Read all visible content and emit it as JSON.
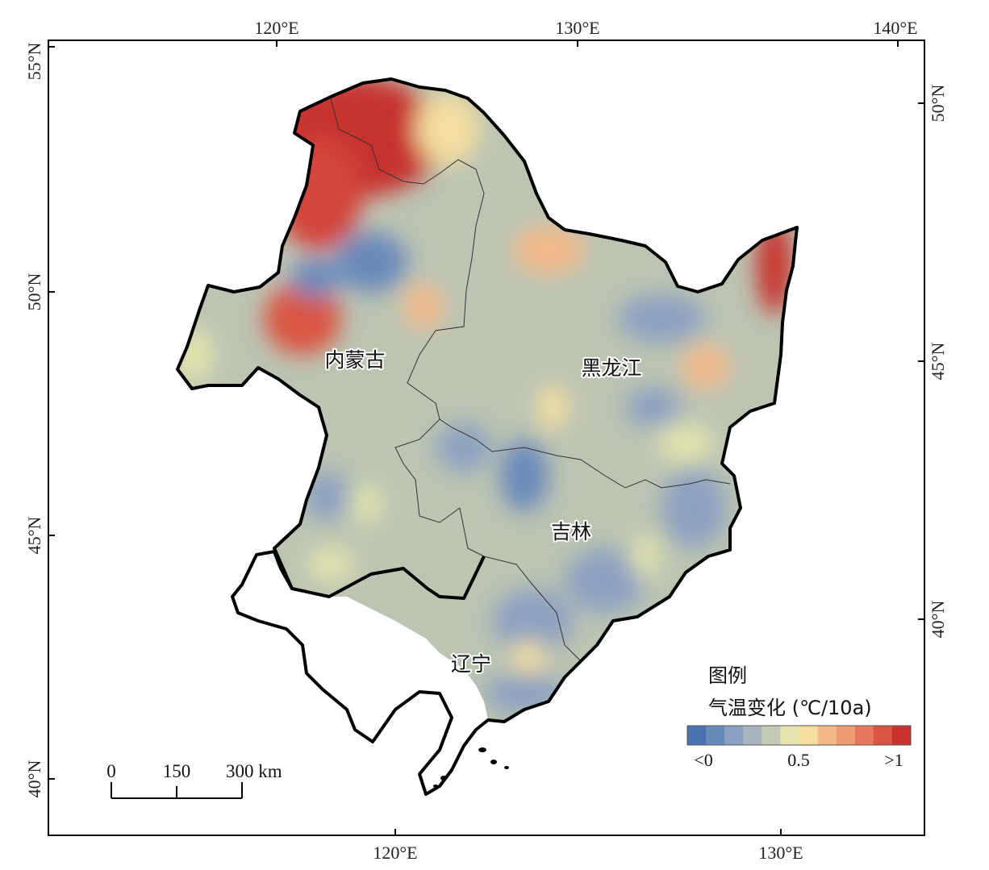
{
  "map": {
    "top_axis_labels": [
      "120°E",
      "130°E",
      "140°E"
    ],
    "bottom_axis_labels": [
      "120°E",
      "130°E"
    ],
    "left_axis_labels": [
      "55°N",
      "50°N",
      "45°N",
      "40°N"
    ],
    "right_axis_labels": [
      "50°N",
      "45°N",
      "40°N"
    ],
    "regions": [
      {
        "name": "内蒙古"
      },
      {
        "name": "黑龙江"
      },
      {
        "name": "吉林"
      },
      {
        "name": "辽宁"
      }
    ]
  },
  "legend": {
    "title": "图例",
    "subtitle": "气温变化 (℃/10a)",
    "labels": [
      "<0",
      "0.5",
      ">1"
    ],
    "colors": [
      "#4a72b0",
      "#6a89bb",
      "#8ca1c1",
      "#a7b4bf",
      "#c4cab6",
      "#e2e3ad",
      "#f4dea0",
      "#f4b98a",
      "#ef9a72",
      "#e6775d",
      "#da5443",
      "#c8312d"
    ]
  },
  "scalebar": {
    "labels": [
      "0",
      "150",
      "300 km"
    ]
  },
  "colors": {
    "background_field": "#bcc4b2",
    "liaoning_fill": "#eceff5",
    "border": "#000000"
  }
}
